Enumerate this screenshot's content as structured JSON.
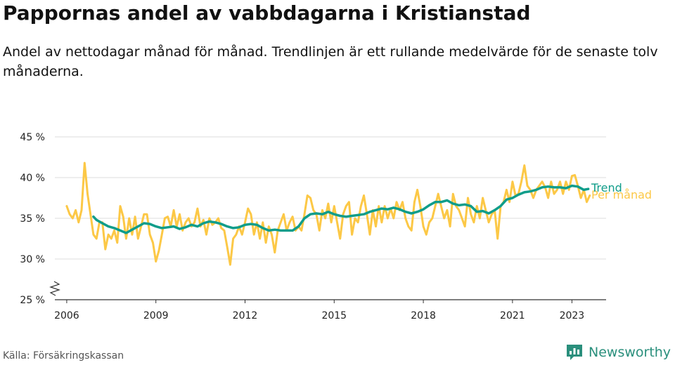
{
  "title": "Pappornas andel av vabbdagarna i Kristianstad",
  "subtitle": "Andel av nettodagar månad för månad. Trendlinjen är ett rullande medelvärde för de senaste tolv månaderna.",
  "source": "Källa: Försäkringskassan",
  "brand": {
    "name": "Newsworthy",
    "icon": "bar-chart-icon",
    "color": "#2a8f7c"
  },
  "chart_data": {
    "type": "line",
    "title": "Pappornas andel av vabbdagarna i Kristianstad",
    "xlabel": "",
    "ylabel": "",
    "y_unit": "%",
    "ylim": [
      25,
      45
    ],
    "y_ticks": [
      {
        "value": 25,
        "label": "25 %"
      },
      {
        "value": 30,
        "label": "30 %"
      },
      {
        "value": 35,
        "label": "35 %"
      },
      {
        "value": 40,
        "label": "40 %"
      },
      {
        "value": 45,
        "label": "45 %"
      }
    ],
    "xlim": [
      2005.6,
      2024.15
    ],
    "x_ticks": [
      {
        "value": 2006,
        "label": "2006"
      },
      {
        "value": 2009,
        "label": "2009"
      },
      {
        "value": 2012,
        "label": "2012"
      },
      {
        "value": 2015,
        "label": "2015"
      },
      {
        "value": 2018,
        "label": "2018"
      },
      {
        "value": 2021,
        "label": "2021"
      },
      {
        "value": 2023,
        "label": "2023"
      }
    ],
    "grid": "horizontal",
    "axis_break": true,
    "legend": "right end labels",
    "series": [
      {
        "name": "Per månad",
        "color": "#fcc846",
        "stroke_width": 3,
        "points": [
          [
            2006.0,
            36.5
          ],
          [
            2006.1,
            35.5
          ],
          [
            2006.2,
            35.0
          ],
          [
            2006.3,
            36.0
          ],
          [
            2006.4,
            34.5
          ],
          [
            2006.5,
            36.0
          ],
          [
            2006.6,
            41.8
          ],
          [
            2006.7,
            38.0
          ],
          [
            2006.8,
            35.5
          ],
          [
            2006.9,
            33.0
          ],
          [
            2007.0,
            32.5
          ],
          [
            2007.1,
            34.5
          ],
          [
            2007.2,
            34.5
          ],
          [
            2007.3,
            31.2
          ],
          [
            2007.4,
            33.0
          ],
          [
            2007.5,
            32.5
          ],
          [
            2007.6,
            33.5
          ],
          [
            2007.7,
            32.0
          ],
          [
            2007.8,
            36.5
          ],
          [
            2007.9,
            35.2
          ],
          [
            2008.0,
            32.5
          ],
          [
            2008.1,
            35.0
          ],
          [
            2008.2,
            33.0
          ],
          [
            2008.3,
            35.2
          ],
          [
            2008.4,
            32.5
          ],
          [
            2008.5,
            34.0
          ],
          [
            2008.6,
            35.5
          ],
          [
            2008.7,
            35.5
          ],
          [
            2008.8,
            33.0
          ],
          [
            2008.9,
            32.0
          ],
          [
            2009.0,
            29.7
          ],
          [
            2009.1,
            31.0
          ],
          [
            2009.2,
            33.0
          ],
          [
            2009.3,
            35.0
          ],
          [
            2009.4,
            35.2
          ],
          [
            2009.5,
            34.0
          ],
          [
            2009.6,
            36.0
          ],
          [
            2009.7,
            34.0
          ],
          [
            2009.8,
            35.5
          ],
          [
            2009.9,
            33.5
          ],
          [
            2010.0,
            34.5
          ],
          [
            2010.1,
            35.0
          ],
          [
            2010.2,
            34.0
          ],
          [
            2010.3,
            34.5
          ],
          [
            2010.4,
            36.2
          ],
          [
            2010.5,
            34.0
          ],
          [
            2010.6,
            34.8
          ],
          [
            2010.7,
            33.0
          ],
          [
            2010.8,
            35.0
          ],
          [
            2010.9,
            34.2
          ],
          [
            2011.0,
            34.5
          ],
          [
            2011.1,
            35.0
          ],
          [
            2011.2,
            33.8
          ],
          [
            2011.3,
            33.5
          ],
          [
            2011.4,
            31.5
          ],
          [
            2011.5,
            29.3
          ],
          [
            2011.6,
            32.5
          ],
          [
            2011.7,
            33.0
          ],
          [
            2011.8,
            34.0
          ],
          [
            2011.9,
            33.0
          ],
          [
            2012.0,
            34.5
          ],
          [
            2012.1,
            36.2
          ],
          [
            2012.2,
            35.5
          ],
          [
            2012.3,
            33.0
          ],
          [
            2012.4,
            34.5
          ],
          [
            2012.5,
            32.5
          ],
          [
            2012.6,
            34.5
          ],
          [
            2012.7,
            32.0
          ],
          [
            2012.8,
            34.0
          ],
          [
            2012.9,
            33.0
          ],
          [
            2013.0,
            30.8
          ],
          [
            2013.1,
            33.5
          ],
          [
            2013.2,
            34.5
          ],
          [
            2013.3,
            35.5
          ],
          [
            2013.4,
            33.5
          ],
          [
            2013.5,
            34.5
          ],
          [
            2013.6,
            35.2
          ],
          [
            2013.7,
            33.5
          ],
          [
            2013.8,
            34.0
          ],
          [
            2013.9,
            33.5
          ],
          [
            2014.0,
            35.5
          ],
          [
            2014.1,
            37.8
          ],
          [
            2014.2,
            37.5
          ],
          [
            2014.3,
            36.0
          ],
          [
            2014.4,
            35.5
          ],
          [
            2014.5,
            33.5
          ],
          [
            2014.6,
            36.0
          ],
          [
            2014.7,
            35.0
          ],
          [
            2014.8,
            36.8
          ],
          [
            2014.9,
            34.5
          ],
          [
            2015.0,
            36.5
          ],
          [
            2015.1,
            34.5
          ],
          [
            2015.2,
            32.5
          ],
          [
            2015.3,
            35.5
          ],
          [
            2015.4,
            36.5
          ],
          [
            2015.5,
            37.0
          ],
          [
            2015.6,
            33.0
          ],
          [
            2015.7,
            35.0
          ],
          [
            2015.8,
            34.5
          ],
          [
            2015.9,
            36.5
          ],
          [
            2016.0,
            37.8
          ],
          [
            2016.1,
            35.5
          ],
          [
            2016.2,
            33.0
          ],
          [
            2016.3,
            36.0
          ],
          [
            2016.4,
            34.0
          ],
          [
            2016.5,
            36.5
          ],
          [
            2016.6,
            34.5
          ],
          [
            2016.7,
            36.5
          ],
          [
            2016.8,
            35.0
          ],
          [
            2016.9,
            36.2
          ],
          [
            2017.0,
            35.0
          ],
          [
            2017.1,
            37.0
          ],
          [
            2017.2,
            36.0
          ],
          [
            2017.3,
            37.0
          ],
          [
            2017.4,
            35.0
          ],
          [
            2017.5,
            34.0
          ],
          [
            2017.6,
            33.5
          ],
          [
            2017.7,
            37.0
          ],
          [
            2017.8,
            38.5
          ],
          [
            2017.9,
            36.5
          ],
          [
            2018.0,
            34.0
          ],
          [
            2018.1,
            33.0
          ],
          [
            2018.2,
            34.5
          ],
          [
            2018.3,
            35.0
          ],
          [
            2018.4,
            36.5
          ],
          [
            2018.5,
            38.0
          ],
          [
            2018.6,
            36.5
          ],
          [
            2018.7,
            35.0
          ],
          [
            2018.8,
            36.0
          ],
          [
            2018.9,
            34.0
          ],
          [
            2019.0,
            38.0
          ],
          [
            2019.1,
            36.5
          ],
          [
            2019.2,
            36.0
          ],
          [
            2019.3,
            35.0
          ],
          [
            2019.4,
            34.0
          ],
          [
            2019.5,
            37.5
          ],
          [
            2019.6,
            35.5
          ],
          [
            2019.7,
            34.5
          ],
          [
            2019.8,
            36.5
          ],
          [
            2019.9,
            35.0
          ],
          [
            2020.0,
            37.5
          ],
          [
            2020.1,
            36.0
          ],
          [
            2020.2,
            34.5
          ],
          [
            2020.3,
            35.5
          ],
          [
            2020.4,
            36.0
          ],
          [
            2020.5,
            32.5
          ],
          [
            2020.6,
            36.5
          ],
          [
            2020.7,
            37.0
          ],
          [
            2020.8,
            38.5
          ],
          [
            2020.9,
            37.0
          ],
          [
            2021.0,
            39.5
          ],
          [
            2021.1,
            37.8
          ],
          [
            2021.2,
            38.0
          ],
          [
            2021.3,
            39.5
          ],
          [
            2021.4,
            41.5
          ],
          [
            2021.5,
            39.0
          ],
          [
            2021.6,
            38.5
          ],
          [
            2021.7,
            37.5
          ],
          [
            2021.8,
            38.5
          ],
          [
            2021.9,
            39.0
          ],
          [
            2022.0,
            39.5
          ],
          [
            2022.1,
            38.8
          ],
          [
            2022.2,
            37.5
          ],
          [
            2022.3,
            39.5
          ],
          [
            2022.4,
            38.0
          ],
          [
            2022.5,
            38.5
          ],
          [
            2022.6,
            39.5
          ],
          [
            2022.7,
            38.0
          ],
          [
            2022.8,
            39.5
          ],
          [
            2022.9,
            38.5
          ],
          [
            2023.0,
            40.2
          ],
          [
            2023.1,
            40.3
          ],
          [
            2023.2,
            39.0
          ],
          [
            2023.3,
            37.5
          ],
          [
            2023.4,
            38.5
          ],
          [
            2023.5,
            37.0
          ],
          [
            2023.6,
            37.8
          ]
        ]
      },
      {
        "name": "Trend",
        "color": "#109d8a",
        "stroke_width": 3.5,
        "points": [
          [
            2006.9,
            35.2
          ],
          [
            2007.0,
            34.8
          ],
          [
            2007.2,
            34.4
          ],
          [
            2007.4,
            34.0
          ],
          [
            2007.6,
            33.8
          ],
          [
            2007.8,
            33.5
          ],
          [
            2008.0,
            33.2
          ],
          [
            2008.2,
            33.6
          ],
          [
            2008.4,
            34.0
          ],
          [
            2008.6,
            34.4
          ],
          [
            2008.8,
            34.3
          ],
          [
            2009.0,
            34.0
          ],
          [
            2009.2,
            33.8
          ],
          [
            2009.4,
            33.9
          ],
          [
            2009.6,
            34.0
          ],
          [
            2009.8,
            33.7
          ],
          [
            2010.0,
            33.9
          ],
          [
            2010.2,
            34.2
          ],
          [
            2010.4,
            34.0
          ],
          [
            2010.6,
            34.4
          ],
          [
            2010.8,
            34.6
          ],
          [
            2011.0,
            34.5
          ],
          [
            2011.2,
            34.3
          ],
          [
            2011.4,
            34.0
          ],
          [
            2011.6,
            33.8
          ],
          [
            2011.8,
            33.9
          ],
          [
            2012.0,
            34.2
          ],
          [
            2012.2,
            34.3
          ],
          [
            2012.4,
            34.2
          ],
          [
            2012.6,
            33.8
          ],
          [
            2012.8,
            33.5
          ],
          [
            2013.0,
            33.6
          ],
          [
            2013.2,
            33.5
          ],
          [
            2013.4,
            33.5
          ],
          [
            2013.6,
            33.5
          ],
          [
            2013.8,
            34.0
          ],
          [
            2014.0,
            35.0
          ],
          [
            2014.2,
            35.5
          ],
          [
            2014.4,
            35.6
          ],
          [
            2014.6,
            35.5
          ],
          [
            2014.8,
            35.8
          ],
          [
            2015.0,
            35.5
          ],
          [
            2015.2,
            35.3
          ],
          [
            2015.4,
            35.2
          ],
          [
            2015.6,
            35.3
          ],
          [
            2015.8,
            35.4
          ],
          [
            2016.0,
            35.5
          ],
          [
            2016.2,
            35.8
          ],
          [
            2016.4,
            36.0
          ],
          [
            2016.6,
            36.2
          ],
          [
            2016.8,
            36.1
          ],
          [
            2017.0,
            36.3
          ],
          [
            2017.2,
            36.1
          ],
          [
            2017.4,
            35.8
          ],
          [
            2017.6,
            35.6
          ],
          [
            2017.8,
            35.8
          ],
          [
            2018.0,
            36.1
          ],
          [
            2018.2,
            36.6
          ],
          [
            2018.4,
            37.0
          ],
          [
            2018.6,
            37.0
          ],
          [
            2018.8,
            37.2
          ],
          [
            2019.0,
            36.8
          ],
          [
            2019.2,
            36.6
          ],
          [
            2019.4,
            36.7
          ],
          [
            2019.6,
            36.5
          ],
          [
            2019.8,
            35.8
          ],
          [
            2020.0,
            35.9
          ],
          [
            2020.2,
            35.6
          ],
          [
            2020.4,
            36.0
          ],
          [
            2020.6,
            36.5
          ],
          [
            2020.8,
            37.3
          ],
          [
            2021.0,
            37.5
          ],
          [
            2021.2,
            37.9
          ],
          [
            2021.4,
            38.2
          ],
          [
            2021.6,
            38.3
          ],
          [
            2021.8,
            38.5
          ],
          [
            2022.0,
            38.8
          ],
          [
            2022.2,
            38.9
          ],
          [
            2022.4,
            38.8
          ],
          [
            2022.6,
            38.8
          ],
          [
            2022.8,
            38.7
          ],
          [
            2023.0,
            39.0
          ],
          [
            2023.2,
            38.9
          ],
          [
            2023.4,
            38.5
          ],
          [
            2023.55,
            38.6
          ]
        ]
      }
    ]
  }
}
